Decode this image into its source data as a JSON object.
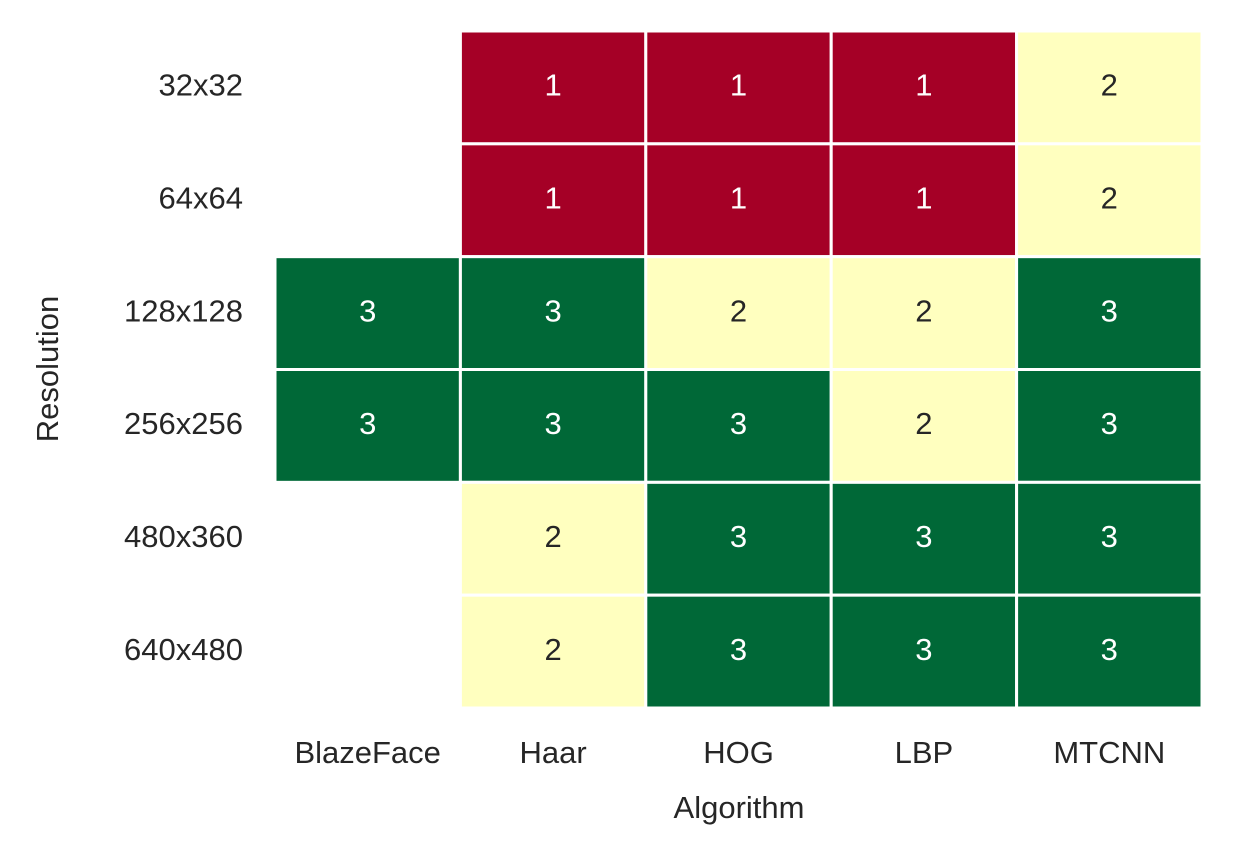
{
  "chart_data": {
    "type": "heatmap",
    "x_label": "Algorithm",
    "y_label": "Resolution",
    "x_categories": [
      "BlazeFace",
      "Haar",
      "HOG",
      "LBP",
      "MTCNN"
    ],
    "y_categories": [
      "32x32",
      "64x64",
      "128x128",
      "256x256",
      "480x360",
      "640x480"
    ],
    "values": [
      [
        null,
        1,
        1,
        1,
        2
      ],
      [
        null,
        1,
        1,
        1,
        2
      ],
      [
        3,
        3,
        2,
        2,
        3
      ],
      [
        3,
        3,
        3,
        2,
        3
      ],
      [
        null,
        2,
        3,
        3,
        3
      ],
      [
        null,
        2,
        3,
        3,
        3
      ]
    ],
    "colors": [
      "#a50026",
      "#ffffbf",
      "#006837"
    ]
  }
}
